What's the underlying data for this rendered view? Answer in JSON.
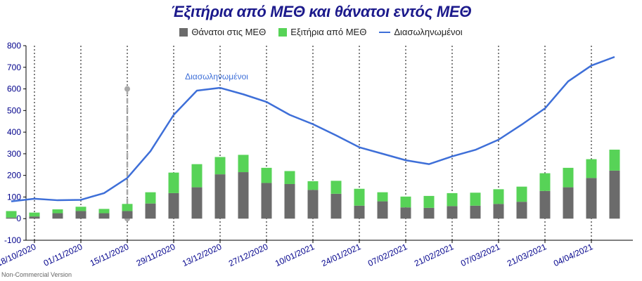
{
  "chart_data": {
    "type": "bar",
    "title": "Έξιτήρια από ΜΕΘ και θάνατοι εντός ΜΕΘ",
    "ylim": [
      -100,
      800
    ],
    "yticks": [
      -100,
      0,
      100,
      200,
      300,
      400,
      500,
      600,
      700,
      800
    ],
    "x_tick_labels": [
      "18/10/2020",
      "01/11/2020",
      "15/11/2020",
      "29/11/2020",
      "13/12/2020",
      "27/12/2020",
      "10/01/2021",
      "24/01/2021",
      "07/02/2021",
      "21/02/2021",
      "07/03/2021",
      "21/03/2021",
      "04/04/2021"
    ],
    "grid": "vertical dotted at tick labels",
    "legend_position": "top-center",
    "colors": {
      "deaths": "#6b6b6b",
      "discharged": "#57d357",
      "intubated": "#3e6fd8",
      "title": "#1c1a8c",
      "axis_text": "#00008b",
      "marker": "#a8a8a8"
    },
    "series": [
      {
        "name": "Θάνατοι στις ΜΕΘ",
        "kind": "bar_stacked",
        "values": [
          5,
          10,
          25,
          35,
          25,
          35,
          70,
          118,
          145,
          205,
          215,
          165,
          160,
          133,
          115,
          60,
          80,
          52,
          50,
          58,
          60,
          68,
          78,
          128,
          145,
          188,
          222
        ]
      },
      {
        "name": "Εξιτήρια από ΜΕΘ",
        "kind": "bar_stacked",
        "values": [
          30,
          18,
          18,
          20,
          20,
          33,
          52,
          95,
          107,
          80,
          80,
          70,
          60,
          40,
          60,
          78,
          42,
          50,
          55,
          60,
          60,
          68,
          70,
          82,
          90,
          87,
          97
        ]
      },
      {
        "name": "Διασωληνωμένοι",
        "kind": "line",
        "values": [
          80,
          92,
          85,
          87,
          118,
          188,
          312,
          480,
          592,
          605,
          575,
          540,
          480,
          437,
          385,
          330,
          300,
          270,
          252,
          288,
          318,
          365,
          435,
          510,
          635,
          708,
          748
        ]
      }
    ],
    "annotations": [
      {
        "text": "Διασωληνωμένοι",
        "series": "Διασωληνωμένοι",
        "at_index": 9,
        "y": 605
      },
      {
        "kind": "dashed_marker",
        "at_index": 5,
        "y_range": [
          0,
          600
        ]
      }
    ]
  },
  "watermark": "Non-Commercial Version"
}
